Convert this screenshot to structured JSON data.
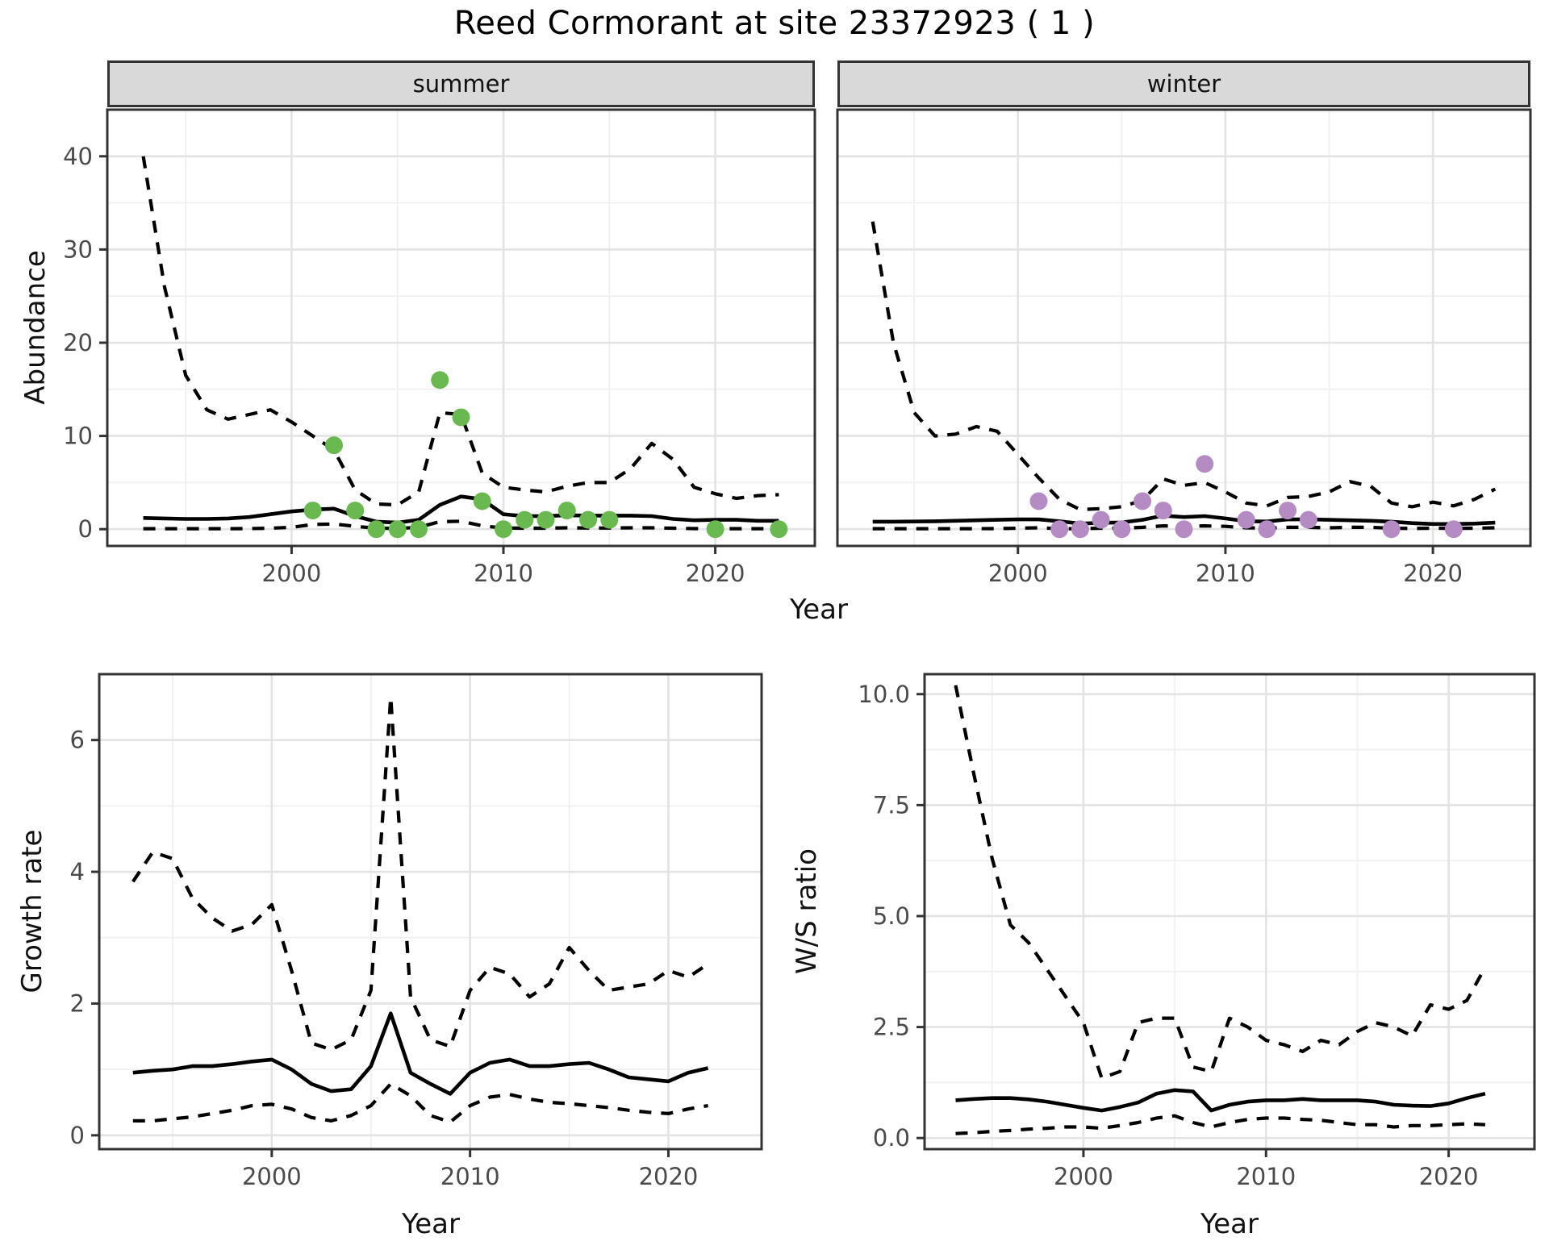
{
  "title": "Reed Cormorant at site 23372923 ( 1 )",
  "labels": {
    "abundance": "Abundance",
    "growth": "Growth rate",
    "ws": "W/S ratio",
    "year": "Year"
  },
  "colors": {
    "summer_point": "#69b950",
    "winter_point": "#b48cc3",
    "line": "#000000",
    "strip_bg": "#d9d9d9",
    "grid_major": "#e3e3e3",
    "grid_minor": "#f0f0f0",
    "frame": "#333333",
    "tick_text": "#4a4a4a"
  },
  "chart_data": [
    {
      "id": "summer",
      "type": "line",
      "facet_label": "summer",
      "ylabel": "Abundance",
      "xlabel": "Year",
      "xlim": [
        1991.3,
        2024.7
      ],
      "ylim": [
        -1.8,
        45
      ],
      "x_ticks": [
        2000,
        2010,
        2020
      ],
      "x_tick_labels": [
        "2000",
        "2010",
        "2020"
      ],
      "x_minor": [
        1995,
        2005,
        2015
      ],
      "y_ticks": [
        0,
        10,
        20,
        30,
        40
      ],
      "y_tick_labels": [
        "0",
        "10",
        "20",
        "30",
        "40"
      ],
      "y_minor": [
        5,
        15,
        25,
        35,
        45
      ],
      "show_y_labels": true,
      "years": [
        1993,
        1994,
        1995,
        1996,
        1997,
        1998,
        1999,
        2000,
        2001,
        2002,
        2003,
        2004,
        2005,
        2006,
        2007,
        2008,
        2009,
        2010,
        2011,
        2012,
        2013,
        2014,
        2015,
        2016,
        2017,
        2018,
        2019,
        2020,
        2021,
        2022,
        2023
      ],
      "median": [
        1.2,
        1.15,
        1.1,
        1.1,
        1.15,
        1.3,
        1.6,
        1.9,
        2.1,
        2.2,
        1.4,
        0.8,
        0.7,
        1.0,
        2.6,
        3.5,
        3.2,
        1.6,
        1.4,
        1.4,
        1.5,
        1.45,
        1.45,
        1.45,
        1.4,
        1.1,
        0.95,
        1.0,
        1.0,
        0.9,
        0.9
      ],
      "lower": [
        0.05,
        0.05,
        0.05,
        0.05,
        0.05,
        0.06,
        0.1,
        0.2,
        0.5,
        0.55,
        0.3,
        0.1,
        0.08,
        0.2,
        0.8,
        0.85,
        0.35,
        0.12,
        0.1,
        0.1,
        0.15,
        0.12,
        0.12,
        0.15,
        0.15,
        0.1,
        0.06,
        0.05,
        0.05,
        0.05,
        0.05
      ],
      "upper": [
        40,
        26,
        16.5,
        12.8,
        11.8,
        12.3,
        12.8,
        11.5,
        10,
        8.5,
        4.2,
        2.7,
        2.6,
        4.0,
        12.5,
        12.3,
        6.0,
        4.5,
        4.2,
        4.0,
        4.6,
        5.0,
        5.0,
        6.5,
        9.2,
        7.5,
        4.5,
        3.8,
        3.3,
        3.6,
        3.7
      ],
      "points": {
        "color": "#69b950",
        "years": [
          2001,
          2002,
          2003,
          2004,
          2005,
          2006,
          2007,
          2008,
          2009,
          2010,
          2011,
          2012,
          2013,
          2014,
          2015,
          2020,
          2023
        ],
        "values": [
          2,
          9,
          2,
          0,
          0,
          0,
          16,
          12,
          3,
          0,
          1,
          1,
          2,
          1,
          1,
          0,
          0
        ]
      }
    },
    {
      "id": "winter",
      "type": "line",
      "facet_label": "winter",
      "ylabel": "",
      "xlabel": "Year",
      "xlim": [
        1991.3,
        2024.7
      ],
      "ylim": [
        -1.8,
        45
      ],
      "x_ticks": [
        2000,
        2010,
        2020
      ],
      "x_tick_labels": [
        "2000",
        "2010",
        "2020"
      ],
      "x_minor": [
        1995,
        2005,
        2015
      ],
      "y_ticks": [
        0,
        10,
        20,
        30,
        40
      ],
      "y_tick_labels": [
        "0",
        "10",
        "20",
        "30",
        "40"
      ],
      "y_minor": [
        5,
        15,
        25,
        35,
        45
      ],
      "show_y_labels": false,
      "years": [
        1993,
        1994,
        1995,
        1996,
        1997,
        1998,
        1999,
        2000,
        2001,
        2002,
        2003,
        2004,
        2005,
        2006,
        2007,
        2008,
        2009,
        2010,
        2011,
        2012,
        2013,
        2014,
        2015,
        2016,
        2017,
        2018,
        2019,
        2020,
        2021,
        2022,
        2023
      ],
      "median": [
        0.8,
        0.8,
        0.82,
        0.85,
        0.9,
        0.95,
        1.0,
        1.05,
        1.05,
        0.85,
        0.6,
        0.68,
        0.72,
        1.0,
        1.45,
        1.3,
        1.4,
        1.15,
        0.85,
        0.82,
        1.05,
        1.05,
        1.0,
        0.95,
        0.9,
        0.8,
        0.65,
        0.55,
        0.55,
        0.6,
        0.7
      ],
      "lower": [
        0.05,
        0.05,
        0.05,
        0.05,
        0.05,
        0.05,
        0.06,
        0.1,
        0.15,
        0.05,
        0.05,
        0.1,
        0.1,
        0.2,
        0.35,
        0.3,
        0.35,
        0.3,
        0.15,
        0.1,
        0.2,
        0.2,
        0.15,
        0.2,
        0.2,
        0.1,
        0.08,
        0.1,
        0.08,
        0.1,
        0.15
      ],
      "upper": [
        33,
        20,
        12.5,
        10,
        10.2,
        11,
        10.5,
        8,
        5.5,
        3.2,
        2.1,
        2.2,
        2.4,
        3.1,
        5.4,
        4.7,
        5.0,
        4.0,
        2.8,
        2.5,
        3.4,
        3.5,
        4.0,
        5.1,
        4.6,
        2.8,
        2.4,
        2.9,
        2.5,
        3.2,
        4.3
      ],
      "points": {
        "color": "#b48cc3",
        "years": [
          2001,
          2002,
          2003,
          2004,
          2005,
          2006,
          2007,
          2008,
          2009,
          2011,
          2012,
          2013,
          2014,
          2018,
          2021
        ],
        "values": [
          3,
          0,
          0,
          1,
          0,
          3,
          2,
          0,
          7,
          1,
          0,
          2,
          1,
          0,
          0
        ]
      }
    },
    {
      "id": "growth",
      "type": "line",
      "facet_label": "",
      "ylabel": "Growth rate",
      "xlabel": "Year",
      "xlim": [
        1991.3,
        2024.7
      ],
      "ylim": [
        -0.21,
        7.0
      ],
      "x_ticks": [
        2000,
        2010,
        2020
      ],
      "x_tick_labels": [
        "2000",
        "2010",
        "2020"
      ],
      "x_minor": [
        1995,
        2005,
        2015
      ],
      "y_ticks": [
        0,
        2,
        4,
        6
      ],
      "y_tick_labels": [
        "0",
        "2",
        "4",
        "6"
      ],
      "y_minor": [
        1,
        3,
        5,
        7
      ],
      "show_y_labels": true,
      "years": [
        1993,
        1994,
        1995,
        1996,
        1997,
        1998,
        1999,
        2000,
        2001,
        2002,
        2003,
        2004,
        2005,
        2006,
        2007,
        2008,
        2009,
        2010,
        2011,
        2012,
        2013,
        2014,
        2015,
        2016,
        2017,
        2018,
        2019,
        2020,
        2021,
        2022
      ],
      "median": [
        0.95,
        0.98,
        1.0,
        1.05,
        1.05,
        1.08,
        1.12,
        1.15,
        1.0,
        0.78,
        0.67,
        0.7,
        1.05,
        1.85,
        0.95,
        0.78,
        0.63,
        0.95,
        1.1,
        1.15,
        1.05,
        1.05,
        1.08,
        1.1,
        1.0,
        0.88,
        0.85,
        0.82,
        0.95,
        1.02
      ],
      "lower": [
        0.22,
        0.22,
        0.25,
        0.28,
        0.33,
        0.38,
        0.45,
        0.47,
        0.4,
        0.27,
        0.22,
        0.3,
        0.45,
        0.78,
        0.6,
        0.3,
        0.2,
        0.45,
        0.58,
        0.62,
        0.55,
        0.5,
        0.48,
        0.45,
        0.42,
        0.38,
        0.35,
        0.33,
        0.4,
        0.45
      ],
      "upper": [
        3.85,
        4.3,
        4.2,
        3.6,
        3.3,
        3.1,
        3.2,
        3.5,
        2.5,
        1.4,
        1.3,
        1.45,
        2.2,
        6.65,
        2.1,
        1.45,
        1.35,
        2.2,
        2.55,
        2.45,
        2.1,
        2.3,
        2.85,
        2.5,
        2.2,
        2.25,
        2.3,
        2.5,
        2.4,
        2.6
      ],
      "points": null
    },
    {
      "id": "ws",
      "type": "line",
      "facet_label": "",
      "ylabel": "W/S ratio",
      "xlabel": "Year",
      "xlim": [
        1991.3,
        2024.7
      ],
      "ylim": [
        -0.25,
        10.45
      ],
      "x_ticks": [
        2000,
        2010,
        2020
      ],
      "x_tick_labels": [
        "2000",
        "2010",
        "2020"
      ],
      "x_minor": [
        1995,
        2005,
        2015
      ],
      "y_ticks": [
        0,
        2.5,
        5,
        7.5,
        10
      ],
      "y_tick_labels": [
        "0.0",
        "2.5",
        "5.0",
        "7.5",
        "10.0"
      ],
      "y_minor": [
        1.25,
        3.75,
        6.25,
        8.75
      ],
      "show_y_labels": true,
      "years": [
        1993,
        1994,
        1995,
        1996,
        1997,
        1998,
        1999,
        2000,
        2001,
        2002,
        2003,
        2004,
        2005,
        2006,
        2007,
        2008,
        2009,
        2010,
        2011,
        2012,
        2013,
        2014,
        2015,
        2016,
        2017,
        2018,
        2019,
        2020,
        2021,
        2022
      ],
      "median": [
        0.85,
        0.88,
        0.9,
        0.9,
        0.87,
        0.82,
        0.75,
        0.68,
        0.62,
        0.7,
        0.8,
        1.0,
        1.08,
        1.05,
        0.62,
        0.75,
        0.82,
        0.85,
        0.85,
        0.88,
        0.85,
        0.85,
        0.85,
        0.82,
        0.75,
        0.73,
        0.72,
        0.78,
        0.9,
        1.0
      ],
      "lower": [
        0.1,
        0.12,
        0.15,
        0.17,
        0.2,
        0.22,
        0.25,
        0.25,
        0.22,
        0.28,
        0.35,
        0.45,
        0.5,
        0.35,
        0.25,
        0.35,
        0.42,
        0.45,
        0.45,
        0.42,
        0.4,
        0.35,
        0.3,
        0.3,
        0.25,
        0.28,
        0.28,
        0.3,
        0.32,
        0.3
      ],
      "upper": [
        10.2,
        8.2,
        6.3,
        4.8,
        4.4,
        3.8,
        3.2,
        2.6,
        1.35,
        1.5,
        2.6,
        2.7,
        2.7,
        1.6,
        1.5,
        2.7,
        2.5,
        2.2,
        2.1,
        1.95,
        2.2,
        2.1,
        2.4,
        2.6,
        2.5,
        2.3,
        3.0,
        2.9,
        3.1,
        3.85
      ],
      "points": null
    }
  ]
}
